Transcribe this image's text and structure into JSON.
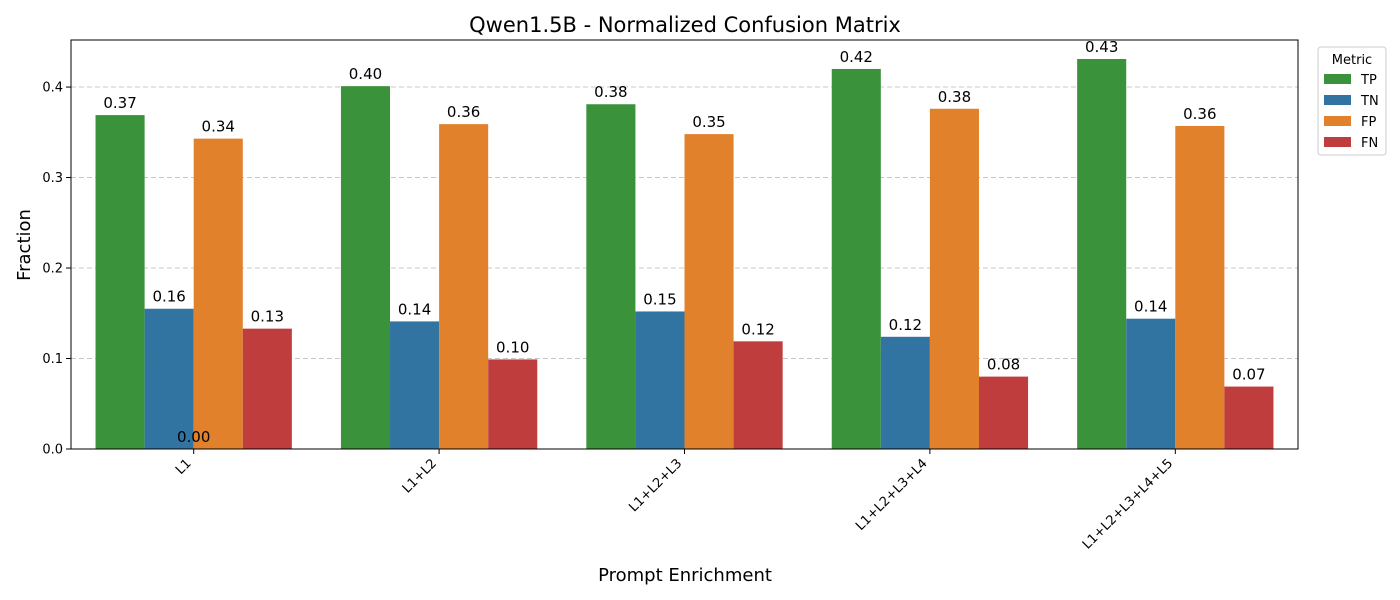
{
  "chart_data": {
    "type": "bar",
    "title": "Qwen1.5B - Normalized Confusion Matrix",
    "xlabel": "Prompt Enrichment",
    "ylabel": "Fraction",
    "categories": [
      "L1",
      "L1+L2",
      "L1+L2+L3",
      "L1+L2+L3+L4",
      "L1+L2+L3+L4+L5"
    ],
    "ylim": [
      0,
      0.452
    ],
    "yticks": [
      "0.0",
      "0.1",
      "0.2",
      "0.3",
      "0.4"
    ],
    "grid": true,
    "legend_title": "Metric",
    "legend_position": "outside top-right",
    "series": [
      {
        "name": "TP",
        "color": "#3a923a",
        "values": [
          0.369,
          0.401,
          0.381,
          0.42,
          0.431
        ],
        "labels": [
          "0.37",
          "0.40",
          "0.38",
          "0.42",
          "0.43"
        ]
      },
      {
        "name": "TN",
        "color": "#3274a1",
        "values": [
          0.155,
          0.141,
          0.152,
          0.124,
          0.144
        ],
        "labels": [
          "0.16",
          "0.14",
          "0.15",
          "0.12",
          "0.14"
        ]
      },
      {
        "name": "FP",
        "color": "#e1812c",
        "values": [
          0.343,
          0.359,
          0.348,
          0.376,
          0.357
        ],
        "labels": [
          "0.34",
          "0.36",
          "0.35",
          "0.38",
          "0.36"
        ]
      },
      {
        "name": "FN",
        "color": "#c03d3e",
        "values": [
          0.133,
          0.099,
          0.119,
          0.08,
          0.069
        ],
        "labels": [
          "0.13",
          "0.10",
          "0.12",
          "0.08",
          "0.07"
        ]
      }
    ],
    "annotations": [
      "0.00"
    ]
  }
}
